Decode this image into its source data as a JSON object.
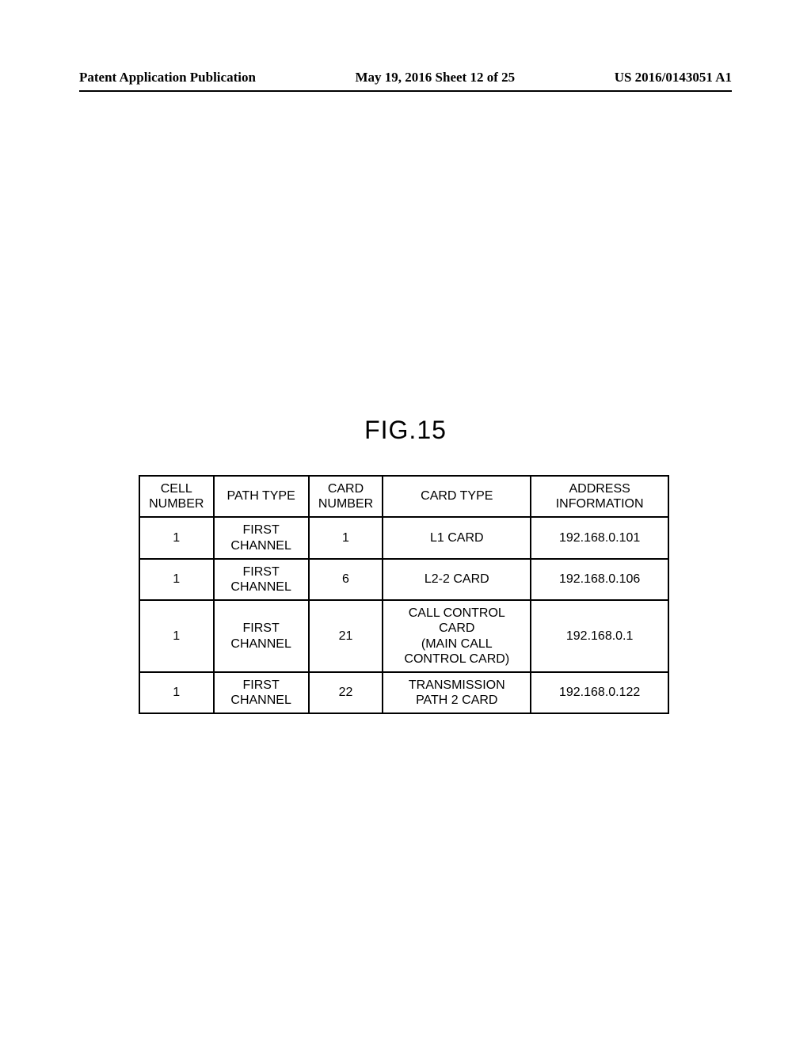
{
  "header": {
    "left": "Patent Application Publication",
    "center": "May 19, 2016  Sheet 12 of 25",
    "right": "US 2016/0143051 A1"
  },
  "figure": {
    "title": "FIG.15"
  },
  "table": {
    "columns": [
      {
        "label_line1": "CELL",
        "label_line2": "NUMBER"
      },
      {
        "label_line1": "PATH TYPE",
        "label_line2": ""
      },
      {
        "label_line1": "CARD",
        "label_line2": "NUMBER"
      },
      {
        "label_line1": "CARD TYPE",
        "label_line2": ""
      },
      {
        "label_line1": "ADDRESS",
        "label_line2": "INFORMATION"
      }
    ],
    "rows": [
      {
        "cell_number": "1",
        "path_type_line1": "FIRST",
        "path_type_line2": "CHANNEL",
        "card_number": "1",
        "card_type_line1": "L1 CARD",
        "card_type_line2": "",
        "card_type_line3": "",
        "card_type_line4": "",
        "address": "192.168.0.101"
      },
      {
        "cell_number": "1",
        "path_type_line1": "FIRST",
        "path_type_line2": "CHANNEL",
        "card_number": "6",
        "card_type_line1": "L2-2 CARD",
        "card_type_line2": "",
        "card_type_line3": "",
        "card_type_line4": "",
        "address": "192.168.0.106"
      },
      {
        "cell_number": "1",
        "path_type_line1": "FIRST",
        "path_type_line2": "CHANNEL",
        "card_number": "21",
        "card_type_line1": "CALL CONTROL",
        "card_type_line2": "CARD",
        "card_type_line3": "(MAIN CALL",
        "card_type_line4": "CONTROL CARD)",
        "address": "192.168.0.1"
      },
      {
        "cell_number": "1",
        "path_type_line1": "FIRST",
        "path_type_line2": "CHANNEL",
        "card_number": "22",
        "card_type_line1": "TRANSMISSION",
        "card_type_line2": "PATH 2 CARD",
        "card_type_line3": "",
        "card_type_line4": "",
        "address": "192.168.0.122"
      }
    ]
  }
}
